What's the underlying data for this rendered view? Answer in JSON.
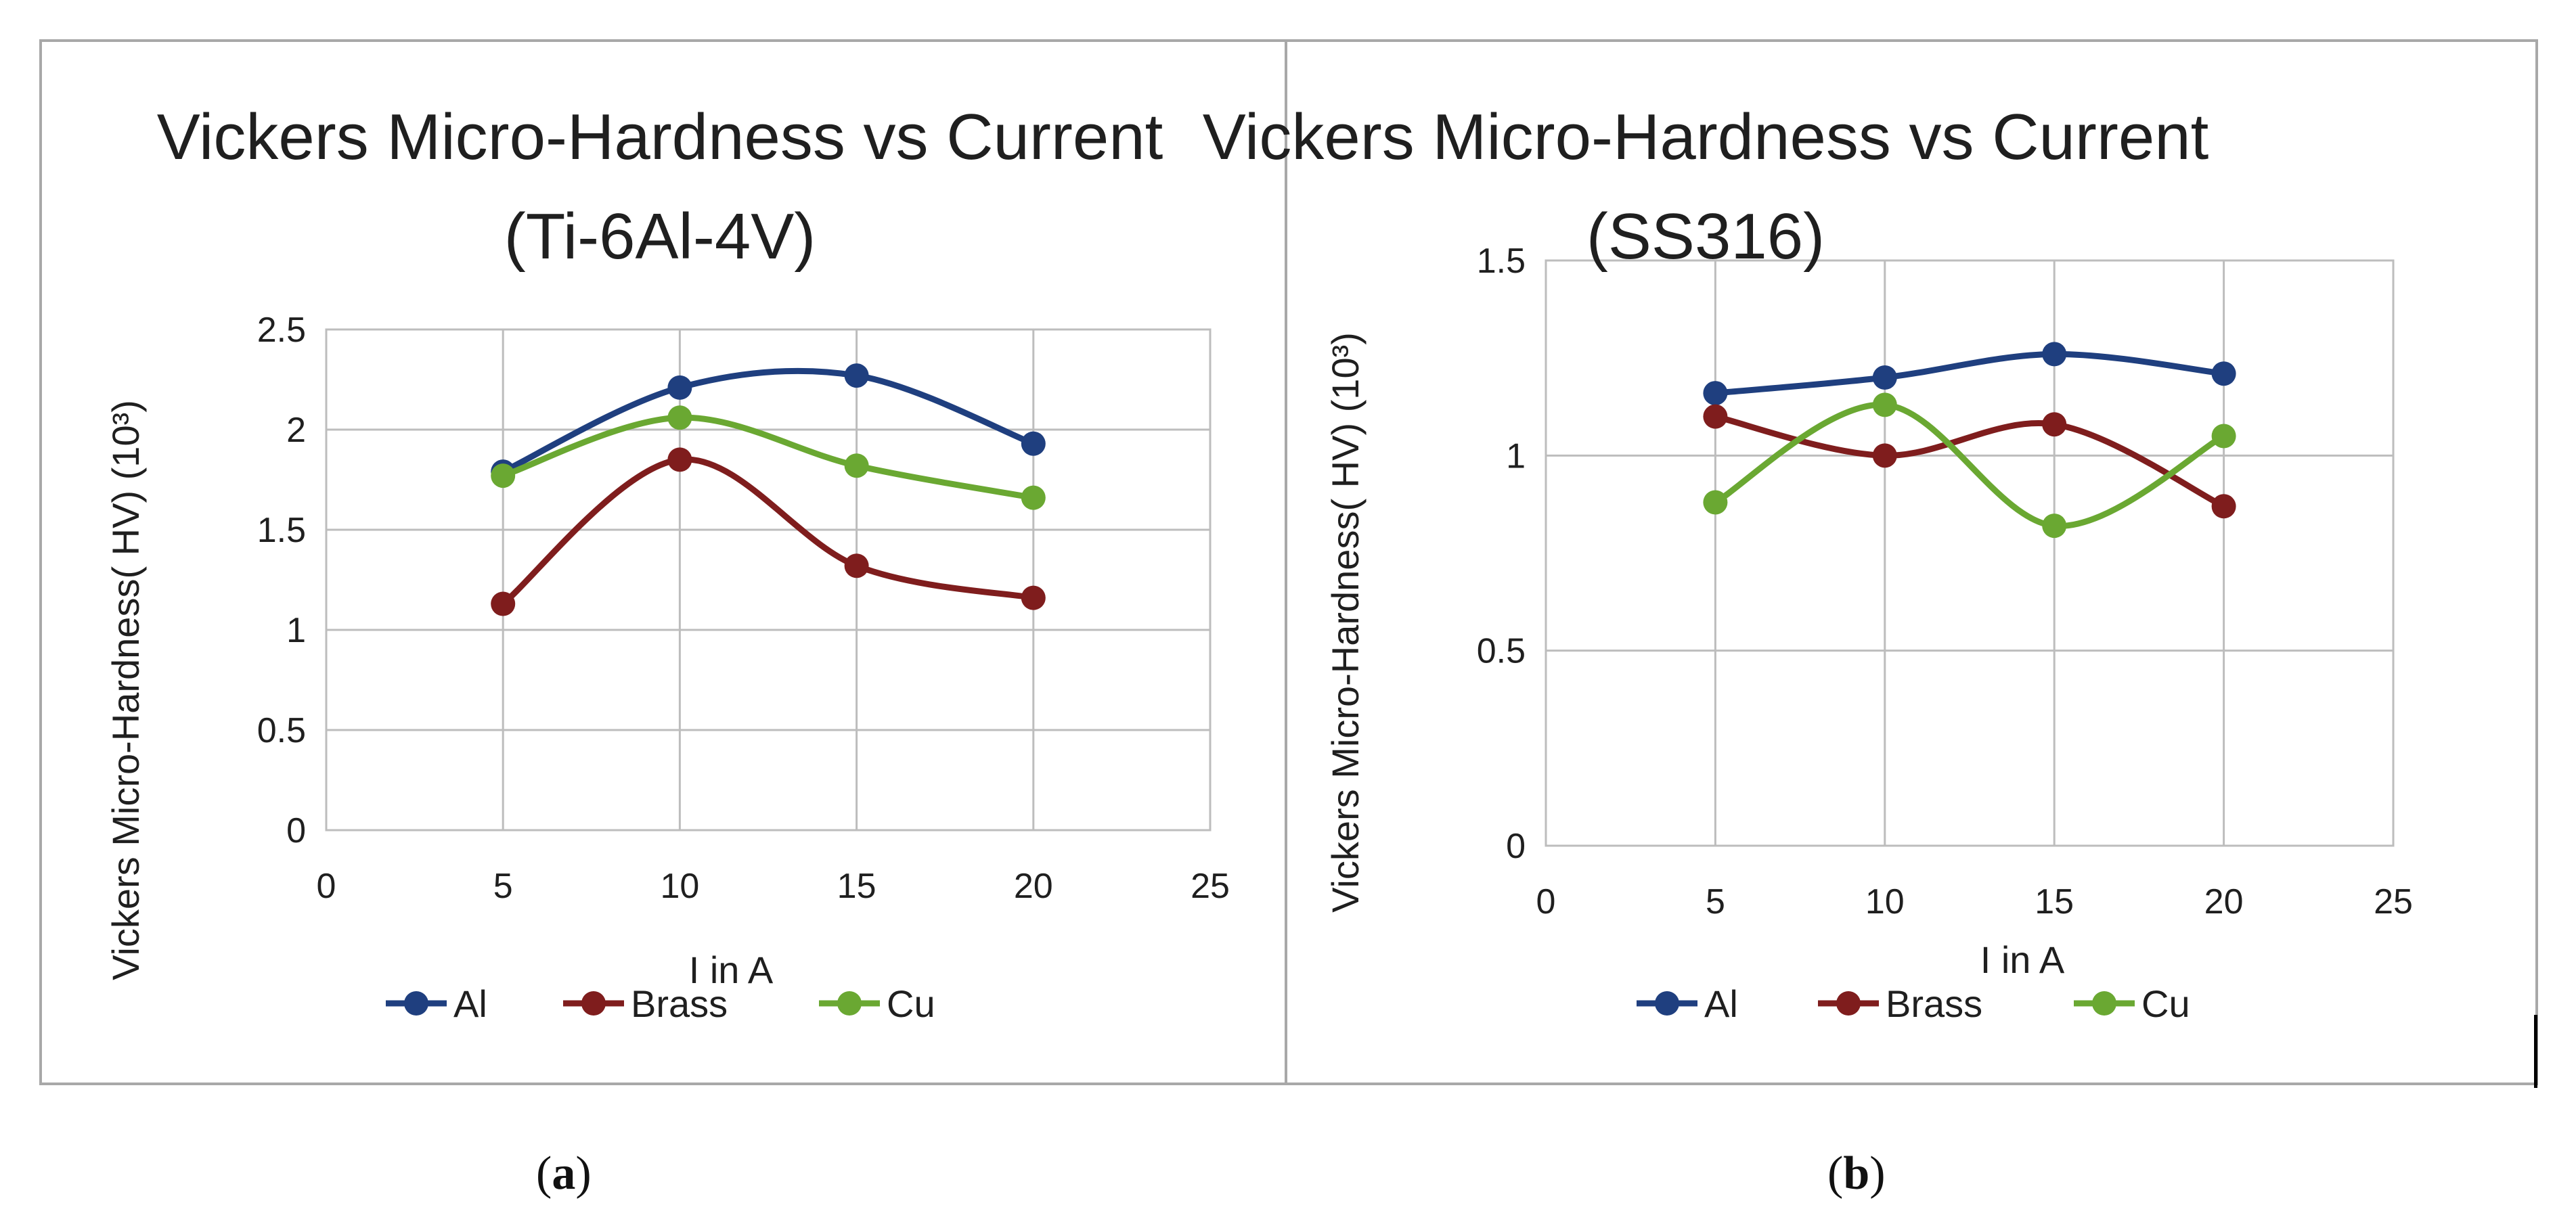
{
  "chart_data": [
    {
      "type": "line",
      "title_lines": [
        "Vickers Micro-Hardness vs Current",
        "(Ti-6Al-4V)"
      ],
      "xlabel": "I in A",
      "ylabel": "Vickers Micro-Hardness( HV) (10³)",
      "xlim": [
        0,
        25
      ],
      "ylim": [
        0,
        2.5
      ],
      "xticks": [
        "0",
        "5",
        "10",
        "15",
        "20",
        "25"
      ],
      "yticks": [
        "0",
        "0.5",
        "1",
        "1.5",
        "2",
        "2.5"
      ],
      "x": [
        5,
        10,
        15,
        20
      ],
      "grid": true,
      "legend_position": "bottom",
      "series": [
        {
          "name": "Al",
          "color": "#1f3f7f",
          "values": [
            1.79,
            2.21,
            2.27,
            1.93
          ]
        },
        {
          "name": "Brass",
          "color": "#7f1d1d",
          "values": [
            1.13,
            1.85,
            1.32,
            1.16
          ]
        },
        {
          "name": "Cu",
          "color": "#6aa832",
          "values": [
            1.77,
            2.06,
            1.82,
            1.66
          ]
        }
      ],
      "panel_label": "a"
    },
    {
      "type": "line",
      "title_lines": [
        "Vickers Micro-Hardness vs Current",
        "(SS316)"
      ],
      "xlabel": "I in A",
      "ylabel": "Vickers Micro-Hardness( HV) (10³)",
      "xlim": [
        0,
        25
      ],
      "ylim": [
        0,
        1.5
      ],
      "xticks": [
        "0",
        "5",
        "10",
        "15",
        "20",
        "25"
      ],
      "yticks": [
        "0",
        "0.5",
        "1",
        "1.5"
      ],
      "x": [
        5,
        10,
        15,
        20
      ],
      "grid": true,
      "legend_position": "bottom",
      "series": [
        {
          "name": "Al",
          "color": "#1f3f7f",
          "values": [
            1.16,
            1.2,
            1.26,
            1.21
          ]
        },
        {
          "name": "Brass",
          "color": "#7f1d1d",
          "values": [
            1.1,
            1.0,
            1.08,
            0.87
          ]
        },
        {
          "name": "Cu",
          "color": "#6aa832",
          "values": [
            0.88,
            1.13,
            0.82,
            1.05
          ]
        }
      ],
      "panel_label": "b"
    }
  ]
}
